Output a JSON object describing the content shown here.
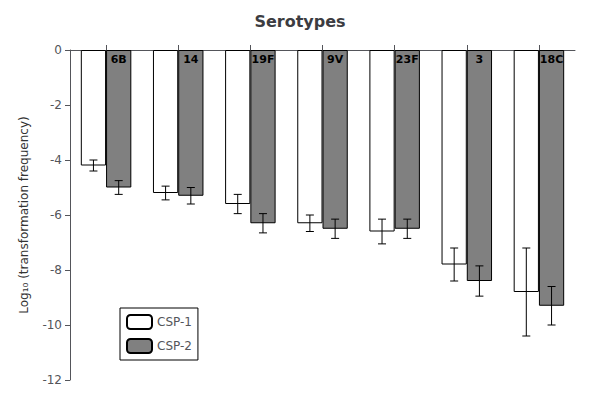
{
  "chart_data": {
    "type": "bar",
    "title": "Serotypes",
    "ylabel": "Log₁₀ (transformation frequency)",
    "categories": [
      "6B",
      "14",
      "19F",
      "9V",
      "23F",
      "3",
      "18C"
    ],
    "series": [
      {
        "name": "CSP-1",
        "color": "#ffffff",
        "values": [
          -4.2,
          -5.2,
          -5.6,
          -6.3,
          -6.6,
          -7.8,
          -8.8
        ],
        "errors": [
          0.2,
          0.25,
          0.35,
          0.3,
          0.45,
          0.6,
          1.6
        ]
      },
      {
        "name": "CSP-2",
        "color": "#808080",
        "values": [
          -5.0,
          -5.3,
          -6.3,
          -6.5,
          -6.5,
          -8.4,
          -9.3
        ],
        "errors": [
          0.25,
          0.3,
          0.35,
          0.35,
          0.35,
          0.55,
          0.7
        ]
      }
    ],
    "ylim": [
      -12,
      0
    ],
    "yticks": [
      0,
      -2,
      -4,
      -6,
      -8,
      -10,
      -12
    ],
    "grid": false,
    "legend": "lower left",
    "tick_labels": "y"
  }
}
